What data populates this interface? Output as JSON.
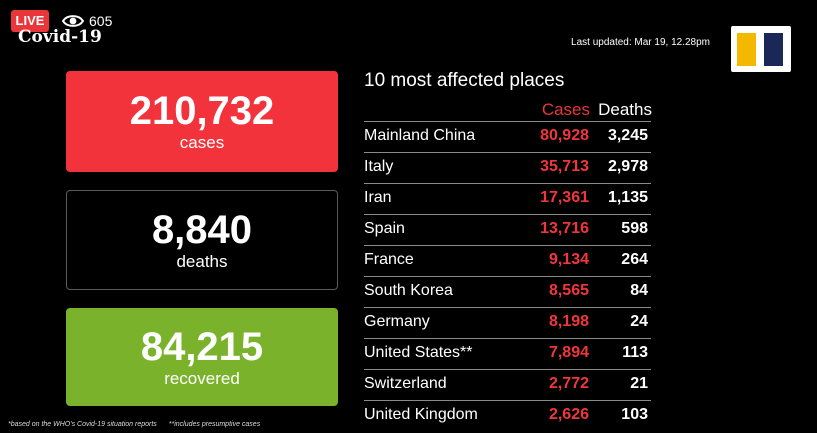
{
  "header": {
    "live_label": "LIVE",
    "viewer_count": "605",
    "title": "Covid-19",
    "last_updated": "Last updated: Mar 19, 12.28pm"
  },
  "stats": {
    "cases": {
      "value": "210,732",
      "label": "cases"
    },
    "deaths": {
      "value": "8,840",
      "label": "deaths"
    },
    "recovered": {
      "value": "84,215",
      "label": "recovered"
    }
  },
  "table": {
    "title": "10 most affected places",
    "headers": {
      "cases": "Cases",
      "deaths": "Deaths"
    },
    "rows": [
      {
        "place": "Mainland China",
        "cases": "80,928",
        "deaths": "3,245"
      },
      {
        "place": "Italy",
        "cases": "35,713",
        "deaths": "2,978"
      },
      {
        "place": "Iran",
        "cases": "17,361",
        "deaths": "1,135"
      },
      {
        "place": "Spain",
        "cases": "13,716",
        "deaths": "598"
      },
      {
        "place": "France",
        "cases": "9,134",
        "deaths": "264"
      },
      {
        "place": "South Korea",
        "cases": "8,565",
        "deaths": "84"
      },
      {
        "place": "Germany",
        "cases": "8,198",
        "deaths": "24"
      },
      {
        "place": "United States**",
        "cases": "7,894",
        "deaths": "113"
      },
      {
        "place": "Switzerland",
        "cases": "2,772",
        "deaths": "21"
      },
      {
        "place": "United Kingdom",
        "cases": "2,626",
        "deaths": "103"
      }
    ]
  },
  "footnotes": {
    "source": "*based on the WHO's Covid-19 situation reports",
    "presumptive": "**includes presumptive cases"
  },
  "colors": {
    "cases_red": "#f2333c",
    "recovered_green": "#7ab32b",
    "live_red": "#e8363a",
    "logo_yellow": "#f5b800",
    "logo_navy": "#1a2857"
  },
  "icons": {
    "viewers": "eye-icon",
    "logo": "broadcaster-logo"
  }
}
